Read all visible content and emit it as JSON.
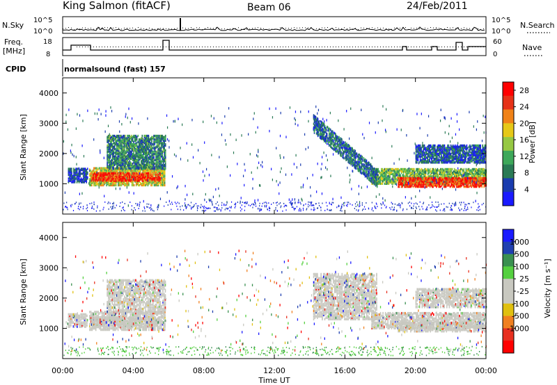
{
  "header": {
    "station": "King Salmon (fitACF)",
    "beam": "Beam 06",
    "date": "24/Feb/2011",
    "cpid_label": "CPID",
    "cpid_value": "normalsound (fast) 157"
  },
  "noise_panel": {
    "left_label": "N.Sky",
    "right_label": "N.Search",
    "left_ticks": [
      "10^5",
      "10^0"
    ],
    "right_ticks": [
      "10^5",
      "10^0"
    ]
  },
  "freq_panel": {
    "left_label_1": "Freq.",
    "left_label_2": "[MHz]",
    "right_label": "Nave",
    "left_ticks": [
      "18",
      "8"
    ],
    "right_ticks": [
      "60",
      "0"
    ]
  },
  "colors": {
    "power": [
      "#1a1aff",
      "#1a3cae",
      "#2a7a55",
      "#3ea85a",
      "#96c843",
      "#e6c818",
      "#f08218",
      "#e63218",
      "#ff0000"
    ],
    "velocity": [
      "#1a1aff",
      "#2040b0",
      "#3a9050",
      "#55d040",
      "#c8c8c0",
      "#c8c8c0",
      "#e0c010",
      "#f08020",
      "#e83020",
      "#ff0000"
    ]
  },
  "chart_data": [
    {
      "type": "heatmap",
      "name": "power",
      "xlabel": "",
      "ylabel": "Slant Range [km]",
      "xlim": [
        0,
        24
      ],
      "ylim": [
        0,
        4500
      ],
      "yticks": [
        "1000",
        "2000",
        "3000",
        "4000"
      ],
      "colorbar_label": "Power [dB]",
      "colorbar_ticks": [
        "4",
        "8",
        "12",
        "16",
        "20",
        "24",
        "28"
      ],
      "colorbar_range": [
        0,
        30
      ],
      "bands": [
        {
          "t0": 0.3,
          "t1": 1.4,
          "r0": 1050,
          "r1": 1500,
          "level": 0.15
        },
        {
          "t0": 1.5,
          "t1": 5.8,
          "r0": 950,
          "r1": 1550,
          "level": 0.55
        },
        {
          "t0": 1.6,
          "t1": 5.5,
          "r0": 1100,
          "r1": 1350,
          "level": 0.85
        },
        {
          "t0": 2.5,
          "t1": 5.8,
          "r0": 1500,
          "r1": 2600,
          "level": 0.3
        },
        {
          "t0": 17.5,
          "t1": 24.0,
          "r0": 1000,
          "r1": 1500,
          "level": 0.45
        },
        {
          "t0": 19.0,
          "t1": 24.0,
          "r0": 900,
          "r1": 1200,
          "level": 0.85
        },
        {
          "t0": 20.0,
          "t1": 24.0,
          "r0": 1700,
          "r1": 2300,
          "level": 0.2
        }
      ],
      "diagonal": {
        "t0": 14.2,
        "t1": 17.8,
        "r0": 3000,
        "r1": 1200,
        "width": 300,
        "level": 0.25
      }
    },
    {
      "type": "heatmap",
      "name": "velocity",
      "xlabel": "Time UT",
      "ylabel": "Slant Range [km]",
      "xlim": [
        0,
        24
      ],
      "ylim": [
        0,
        4500
      ],
      "xticks": [
        "00:00",
        "04:00",
        "08:00",
        "12:00",
        "16:00",
        "20:00",
        "00:00"
      ],
      "yticks": [
        "1000",
        "2000",
        "3000",
        "4000"
      ],
      "colorbar_label": "Velocity [m s⁻¹]",
      "colorbar_ticks": [
        "1000",
        "500",
        "100",
        "25",
        "-25",
        "-100",
        "-500",
        "-1000"
      ],
      "colorbar_range": [
        -1000,
        1000
      ]
    }
  ]
}
